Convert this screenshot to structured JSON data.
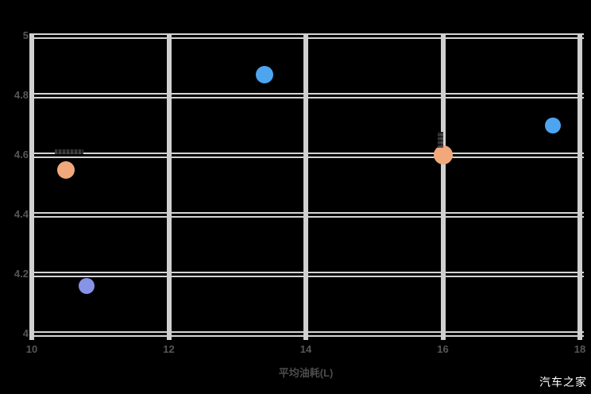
{
  "watermark": {
    "text": "汽车之家"
  },
  "chart_data": {
    "type": "scatter",
    "title": "",
    "xlabel": "平均油耗(L)",
    "ylabel": "",
    "xlim": [
      10,
      18
    ],
    "ylim": [
      4,
      5
    ],
    "grid": true,
    "legend": "none",
    "background_color": "#000000",
    "gridline_color": "#d4d4d4",
    "tick_label_color": "#565656",
    "x_ticks": [
      {
        "value": 10,
        "label": "10"
      },
      {
        "value": 12,
        "label": "12"
      },
      {
        "value": 14,
        "label": "14"
      },
      {
        "value": 16,
        "label": "16"
      },
      {
        "value": 18,
        "label": "18"
      }
    ],
    "y_ticks": [
      {
        "value": 5,
        "label": "5"
      },
      {
        "value": 4.8,
        "label": "4.8"
      },
      {
        "value": 4.6,
        "label": "4.6"
      },
      {
        "value": 4.4,
        "label": "4.4"
      },
      {
        "value": 4.2,
        "label": "4.2"
      },
      {
        "value": 4,
        "label": "4"
      }
    ],
    "points": [
      {
        "x": 10.5,
        "y": 4.55,
        "r": 11,
        "color": "#f1a87a",
        "series": "orange"
      },
      {
        "x": 10.8,
        "y": 4.16,
        "r": 10,
        "color": "#8793e6",
        "series": "periwinkle"
      },
      {
        "x": 13.4,
        "y": 4.87,
        "r": 11,
        "color": "#4ea5ef",
        "series": "blue"
      },
      {
        "x": 16.0,
        "y": 4.6,
        "r": 12,
        "color": "#f1a87a",
        "series": "orange"
      },
      {
        "x": 17.6,
        "y": 4.7,
        "r": 10,
        "color": "#4ea5ef",
        "series": "blue"
      }
    ],
    "annotations": [
      {
        "x": 10.55,
        "y": 4.61,
        "orientation": "horizontal",
        "w": 36,
        "h": 6,
        "note": "illegible tiny label"
      },
      {
        "x": 15.97,
        "y": 4.65,
        "orientation": "vertical",
        "w": 7,
        "h": 20,
        "note": "illegible tiny label"
      }
    ]
  }
}
